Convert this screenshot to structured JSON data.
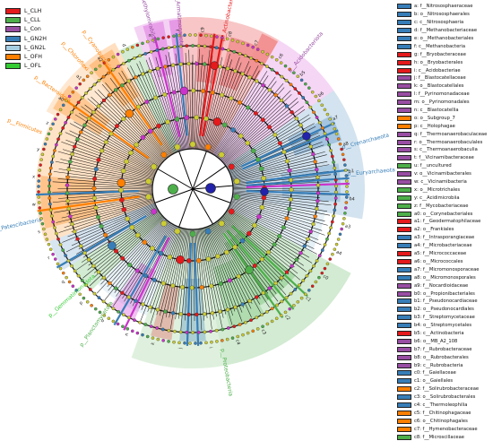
{
  "group_legend": [
    {
      "label": "L_CLH",
      "color": "#e41a1c"
    },
    {
      "label": "L_CLL",
      "color": "#4daf4a"
    },
    {
      "label": "L_Con",
      "color": "#984ea3"
    },
    {
      "label": "L_GN2H",
      "color": "#377eb8"
    },
    {
      "label": "L_GN2L",
      "color": "#a6cee3"
    },
    {
      "label": "L_OFH",
      "color": "#ff7f00"
    },
    {
      "label": "L_OFL",
      "color": "#33cc33"
    }
  ],
  "taxa_legend": [
    {
      "label": "a: f__Nitrososphaeraceae",
      "color": "#377eb8"
    },
    {
      "label": "b: o__Nitrososphaerales",
      "color": "#377eb8"
    },
    {
      "label": "c: c__Nitrososphaeria",
      "color": "#377eb8"
    },
    {
      "label": "d: f__Methanobacteriaceae",
      "color": "#377eb8"
    },
    {
      "label": "e: o__Methanobacteriales",
      "color": "#377eb8"
    },
    {
      "label": "f: c__Methanobacteria",
      "color": "#377eb8"
    },
    {
      "label": "g: f__Bryobacteraceae",
      "color": "#e41a1c"
    },
    {
      "label": "h: o__Bryobacterales",
      "color": "#e41a1c"
    },
    {
      "label": "i: c__Acidobacteriae",
      "color": "#e41a1c"
    },
    {
      "label": "j: f__Blastocatellaceae",
      "color": "#984ea3"
    },
    {
      "label": "k: o__Blastocatellales",
      "color": "#984ea3"
    },
    {
      "label": "l: f__Pyrinomonadaceae",
      "color": "#984ea3"
    },
    {
      "label": "m: o__Pyrinomonadales",
      "color": "#984ea3"
    },
    {
      "label": "n: c__Blastocatellia",
      "color": "#984ea3"
    },
    {
      "label": "o: o__Subgroup_7",
      "color": "#ff7f00"
    },
    {
      "label": "p: c__Holophagae",
      "color": "#ff7f00"
    },
    {
      "label": "q: f__Thermoanaerobaculaceae",
      "color": "#984ea3"
    },
    {
      "label": "r: o__Thermoanaerobaculales",
      "color": "#984ea3"
    },
    {
      "label": "s: c__Thermoanaerobaculia",
      "color": "#984ea3"
    },
    {
      "label": "t: f__Vicinamibacteraceae",
      "color": "#984ea3"
    },
    {
      "label": "u: f__uncultured",
      "color": "#4daf4a"
    },
    {
      "label": "v: o__Vicinamibacterales",
      "color": "#984ea3"
    },
    {
      "label": "w: c__Vicinamibacteria",
      "color": "#984ea3"
    },
    {
      "label": "x: o__Microtrichales",
      "color": "#4daf4a"
    },
    {
      "label": "y: c__Acidimicrobiia",
      "color": "#4daf4a"
    },
    {
      "label": "z: f__Mycobacteriaceae",
      "color": "#4daf4a"
    },
    {
      "label": "a0: o__Corynebacteriales",
      "color": "#4daf4a"
    },
    {
      "label": "a1: f__Geodermatophilaceae",
      "color": "#e41a1c"
    },
    {
      "label": "a2: o__Frankiales",
      "color": "#e41a1c"
    },
    {
      "label": "a3: f__Intrasporangiaceae",
      "color": "#377eb8"
    },
    {
      "label": "a4: f__Microbacteriaceae",
      "color": "#377eb8"
    },
    {
      "label": "a5: f__Micrococcaceae",
      "color": "#e41a1c"
    },
    {
      "label": "a6: o__Micrococcales",
      "color": "#e41a1c"
    },
    {
      "label": "a7: f__Micromonosporaceae",
      "color": "#377eb8"
    },
    {
      "label": "a8: o__Micromonosporales",
      "color": "#377eb8"
    },
    {
      "label": "a9: f__Nocardioidaceae",
      "color": "#984ea3"
    },
    {
      "label": "b0: o__Propionibacteriales",
      "color": "#984ea3"
    },
    {
      "label": "b1: f__Pseudonocardiaceae",
      "color": "#377eb8"
    },
    {
      "label": "b2: o__Pseudonocardiales",
      "color": "#377eb8"
    },
    {
      "label": "b3: f__Streptomycetaceae",
      "color": "#377eb8"
    },
    {
      "label": "b4: o__Streptomycetales",
      "color": "#377eb8"
    },
    {
      "label": "b5: c__Actinobacteria",
      "color": "#e41a1c"
    },
    {
      "label": "b6: o__MB_A2_108",
      "color": "#984ea3"
    },
    {
      "label": "b7: f__Rubrobacteraceae",
      "color": "#984ea3"
    },
    {
      "label": "b8: o__Rubrobacterales",
      "color": "#984ea3"
    },
    {
      "label": "b9: c__Rubrobacteria",
      "color": "#984ea3"
    },
    {
      "label": "c0: f__Gaiellaceae",
      "color": "#377eb8"
    },
    {
      "label": "c1: o__Gaiellales",
      "color": "#377eb8"
    },
    {
      "label": "c2: f__Solirubrobacteraceae",
      "color": "#ff7f00"
    },
    {
      "label": "c3: o__Solirubrobacterales",
      "color": "#377eb8"
    },
    {
      "label": "c4: c__Thermoleophilia",
      "color": "#377eb8"
    },
    {
      "label": "c5: f__Chitinophagaceae",
      "color": "#ff7f00"
    },
    {
      "label": "c6: o__Chitinophagales",
      "color": "#ff7f00"
    },
    {
      "label": "c7: f__Hymenobacteraceae",
      "color": "#ff7f00"
    },
    {
      "label": "c8: f__Microscillaceae",
      "color": "#4daf4a"
    }
  ],
  "clade_labels": [
    {
      "text": "p__Methylomirabilota",
      "color": "#984ea3"
    },
    {
      "text": "p__Chloroflexi",
      "color": "#ff7f00"
    },
    {
      "text": "p__Cyanobacteria",
      "color": "#ff7f00"
    },
    {
      "text": "p__Armatimonadota",
      "color": "#984ea3"
    },
    {
      "text": "p__Actinobacteriota",
      "color": "#e41a1c"
    },
    {
      "text": "p__Acidobacteriota",
      "color": "#984ea3"
    },
    {
      "text": "p__Crenarchaeota",
      "color": "#377eb8"
    },
    {
      "text": "p__Euryarchaeota",
      "color": "#377eb8"
    },
    {
      "text": "p__Firmicutes",
      "color": "#ff7f00"
    },
    {
      "text": "p__Patescibacteria",
      "color": "#377eb8"
    },
    {
      "text": "p__Proteobacteria",
      "color": "#4daf4a"
    },
    {
      "text": "p__Planctomycetota",
      "color": "#4daf4a"
    },
    {
      "text": "p__Gemmatimonadota",
      "color": "#33cc33"
    },
    {
      "text": "p__Bacteroidota",
      "color": "#ff7f00"
    }
  ],
  "sector_letters": [
    "c9",
    "c8",
    "c7",
    "c6",
    "b5",
    "b6",
    "a7",
    "a8",
    "b1",
    "b4",
    "a3",
    "a4",
    "c0",
    "c1",
    "c2",
    "c3",
    "c4",
    "i",
    "j",
    "k",
    "n",
    "o",
    "p",
    "q",
    "r",
    "s",
    "w",
    "x",
    "y",
    "z",
    "a0",
    "a1",
    "a2",
    "d",
    "e",
    "f"
  ]
}
